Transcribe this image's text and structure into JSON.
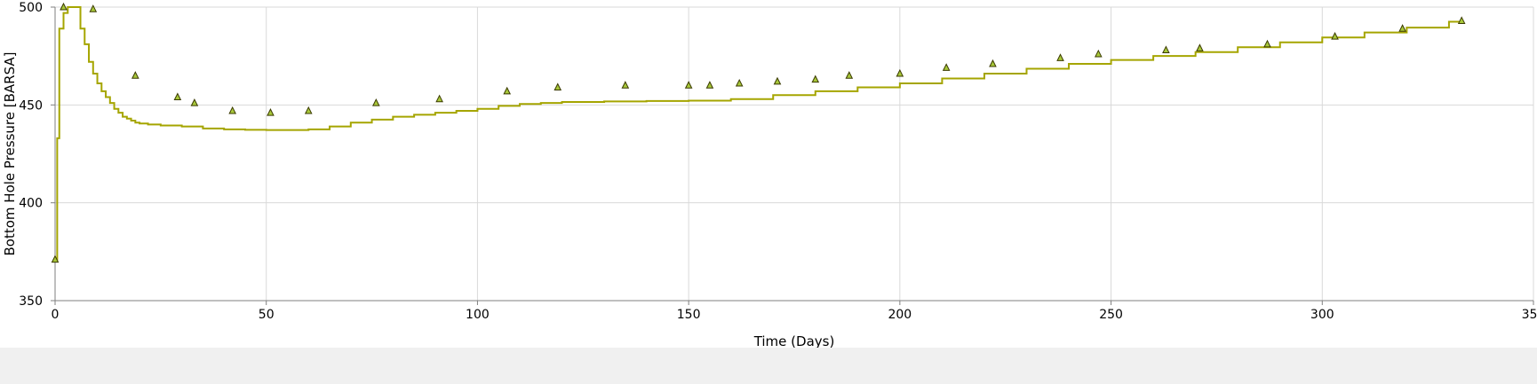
{
  "colors": {
    "line": "#a5a500",
    "marker_fill": "#a8c83a",
    "marker_stroke": "#3a3a00",
    "grid": "#d9d9d9",
    "axis": "#7f7f7f",
    "background": "#ffffff"
  },
  "chart_data": {
    "type": "line",
    "title": "",
    "xlabel": "Time (Days)",
    "ylabel": "Bottom Hole Pressure [BARSA]",
    "xlim": [
      0,
      350
    ],
    "ylim": [
      350,
      500
    ],
    "grid": true,
    "x_ticks": [
      0,
      50,
      100,
      150,
      200,
      250,
      300,
      350
    ],
    "y_ticks": [
      350,
      400,
      450,
      500
    ],
    "series": [
      {
        "kind": "line",
        "step": true,
        "x": [
          0,
          0.5,
          1,
          2,
          3,
          4,
          5,
          6,
          7,
          8,
          9,
          10,
          11,
          12,
          13,
          14,
          15,
          16,
          17,
          18,
          19,
          20,
          22,
          25,
          30,
          35,
          40,
          45,
          50,
          55,
          60,
          65,
          70,
          75,
          80,
          85,
          90,
          95,
          100,
          105,
          110,
          115,
          120,
          130,
          140,
          150,
          160,
          170,
          180,
          190,
          200,
          210,
          220,
          230,
          240,
          250,
          260,
          270,
          280,
          290,
          300,
          310,
          320,
          330,
          333
        ],
        "y": [
          370,
          433,
          489,
          497,
          500,
          500,
          500,
          489,
          481,
          472,
          466,
          461,
          457,
          454,
          451,
          448,
          446,
          444,
          443,
          442,
          441,
          440.5,
          440,
          439.5,
          439,
          438,
          437.5,
          437.3,
          437.2,
          437.2,
          437.5,
          439,
          441,
          442.5,
          444,
          445,
          446,
          447,
          448,
          449.5,
          450.5,
          451,
          451.5,
          451.8,
          452,
          452.2,
          453,
          455,
          457,
          459,
          461,
          463.5,
          466,
          468.5,
          471,
          473,
          475,
          477,
          479.5,
          482,
          484.5,
          487,
          489.5,
          492.5,
          494
        ]
      },
      {
        "kind": "scatter",
        "marker": "triangle",
        "x": [
          0,
          2,
          9,
          19,
          29,
          33,
          42,
          51,
          60,
          76,
          91,
          107,
          119,
          135,
          150,
          155,
          162,
          171,
          180,
          188,
          200,
          211,
          222,
          238,
          247,
          263,
          271,
          287,
          303,
          319,
          333
        ],
        "y": [
          371,
          500,
          499,
          465,
          454,
          451,
          447,
          446,
          447,
          451,
          453,
          457,
          459,
          460,
          460,
          460,
          461,
          462,
          463,
          465,
          466,
          469,
          471,
          474,
          476,
          478,
          479,
          481,
          485,
          489,
          493
        ]
      }
    ]
  }
}
